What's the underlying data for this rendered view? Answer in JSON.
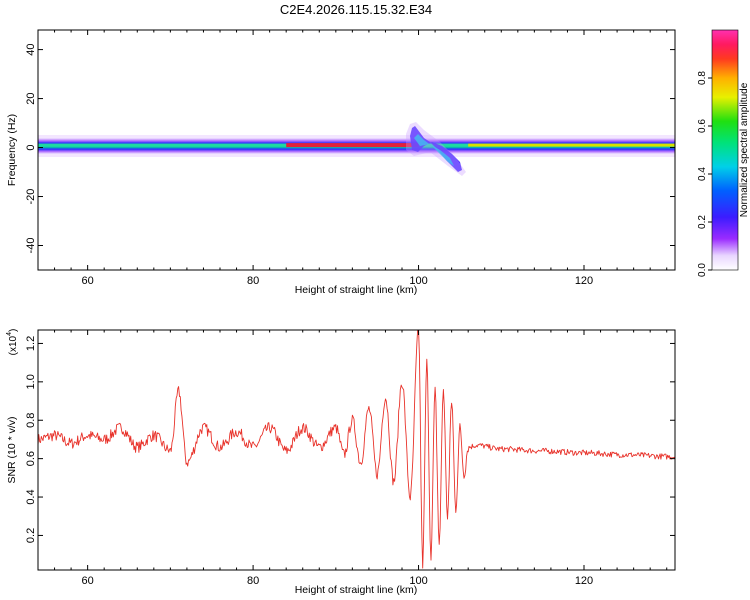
{
  "figure_title": "C2E4.2026.115.15.32.E34",
  "colors": {
    "snr_line": "#e8322a",
    "spectrogram_ridge": "#e2203a",
    "background": "#ffffff"
  },
  "colorbar": {
    "label": "Normalized spectral amplitude",
    "ticks": [
      "0.0",
      "0.2",
      "0.4",
      "0.6",
      "0.8"
    ],
    "tick_values": [
      0.0,
      0.2,
      0.4,
      0.6,
      0.8
    ],
    "range": [
      0,
      1
    ],
    "colormap": "rainbow (white-violet-blue-cyan-green-yellow-red-magenta)"
  },
  "chart_data": [
    {
      "type": "heatmap",
      "title": "C2E4.2026.115.15.32.E34",
      "xlabel": "Height of straight line (km)",
      "ylabel": "Frequency (Hz)",
      "xlim": [
        54,
        131
      ],
      "ylim": [
        -50,
        48
      ],
      "xticks": [
        60,
        80,
        100,
        120
      ],
      "xtick_labels": [
        "60",
        "80",
        "100",
        "120"
      ],
      "yticks": [
        40,
        20,
        0,
        -20,
        -40
      ],
      "ytick_labels": [
        "40",
        "20",
        "0",
        "-20",
        "-40"
      ],
      "band": {
        "description": "Narrow band of spectral energy centred near 0 Hz across all heights",
        "center_hz": 1,
        "half_width_hz": 3,
        "peak_amplitude_range_km": [
          84,
          100
        ]
      },
      "disturbance": {
        "height_km": [
          99.5,
          105.5
        ],
        "upper_excursion_hz": 8,
        "lower_tail_hz": -9
      }
    },
    {
      "type": "line",
      "xlabel": "Height of straight line (km)",
      "ylabel": "SNR (10 * v/v)",
      "y_multiplier_label": "(x10",
      "y_multiplier_exponent": "4",
      "y_multiplier_suffix": ")",
      "xlim": [
        54,
        131
      ],
      "ylim": [
        0.02,
        1.27
      ],
      "xticks": [
        60,
        80,
        100,
        120
      ],
      "xtick_labels": [
        "60",
        "80",
        "100",
        "120"
      ],
      "yticks": [
        1.2,
        1.0,
        0.8,
        0.6,
        0.4,
        0.2
      ],
      "ytick_labels": [
        "1.2",
        "1.0",
        "0.8",
        "0.6",
        "0.4",
        "0.2"
      ],
      "series": [
        {
          "x": [
            54,
            56,
            58,
            60,
            62,
            64,
            66,
            68,
            70,
            71,
            72,
            74,
            76,
            78,
            80,
            82,
            84,
            86,
            88,
            90,
            91,
            92,
            93,
            94,
            95,
            96,
            97,
            98,
            99,
            100,
            100.5,
            101,
            101.5,
            102,
            102.5,
            103,
            103.5,
            104,
            104.5,
            105,
            105.5,
            106,
            107,
            110,
            115,
            120,
            125,
            131
          ],
          "y": [
            0.7,
            0.72,
            0.68,
            0.72,
            0.7,
            0.76,
            0.66,
            0.72,
            0.64,
            0.95,
            0.58,
            0.76,
            0.66,
            0.74,
            0.66,
            0.76,
            0.64,
            0.76,
            0.66,
            0.76,
            0.62,
            0.8,
            0.58,
            0.86,
            0.52,
            0.92,
            0.48,
            1.0,
            0.4,
            1.27,
            0.05,
            1.1,
            0.1,
            0.95,
            0.16,
            0.96,
            0.3,
            0.9,
            0.34,
            0.76,
            0.52,
            0.66,
            0.67,
            0.65,
            0.64,
            0.63,
            0.62,
            0.61
          ]
        }
      ]
    }
  ]
}
